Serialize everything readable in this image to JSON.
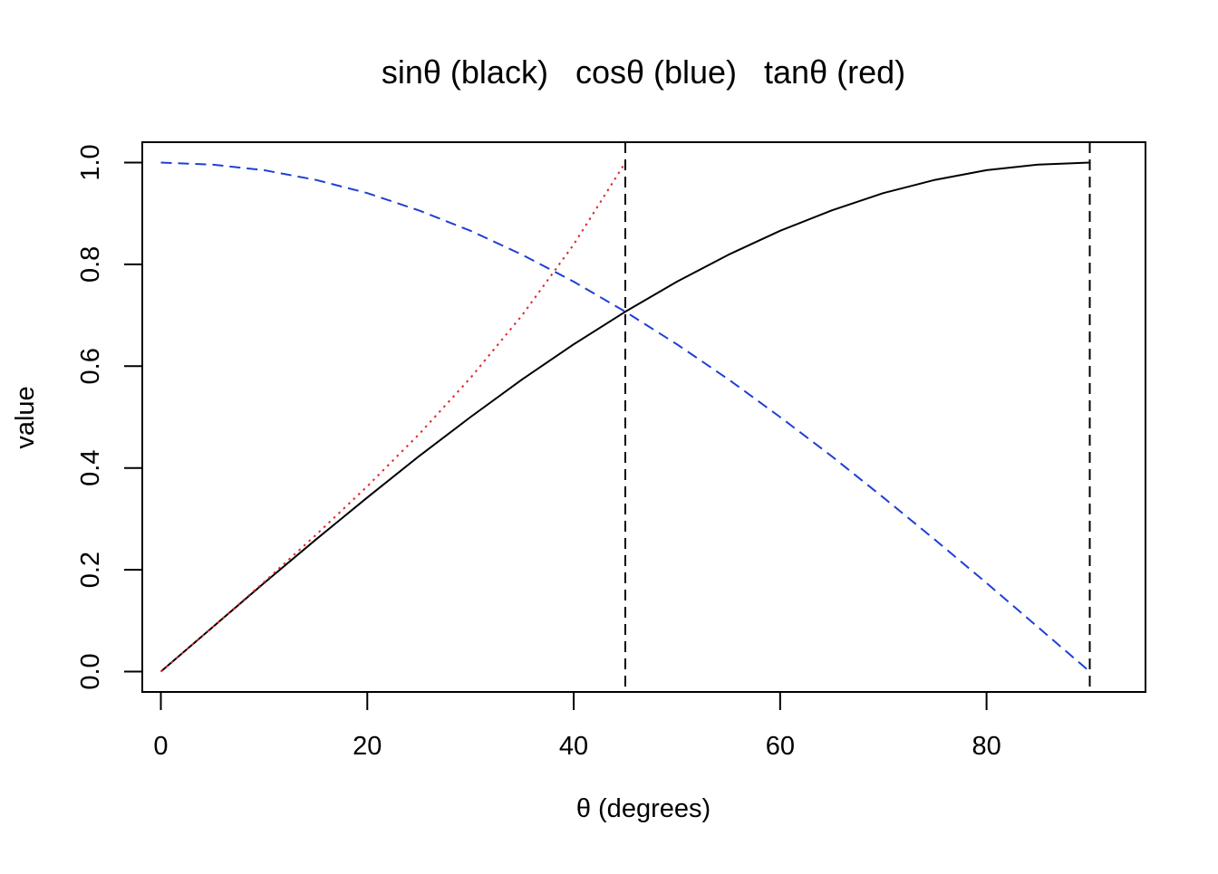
{
  "chart_data": {
    "type": "line",
    "title": "sinθ (black)   cosθ (blue)   tanθ (red)",
    "xlabel": "θ (degrees)",
    "ylabel": "value",
    "xlim": [
      -1.8,
      95.4
    ],
    "ylim": [
      -0.04,
      1.04
    ],
    "x_ticks": [
      0,
      20,
      40,
      60,
      80
    ],
    "y_ticks": [
      0.0,
      0.2,
      0.4,
      0.6,
      0.8,
      1.0
    ],
    "x_tick_labels": [
      "0",
      "20",
      "40",
      "60",
      "80"
    ],
    "y_tick_labels": [
      "0.0",
      "0.2",
      "0.4",
      "0.6",
      "0.8",
      "1.0"
    ],
    "grid": false,
    "legend": "none",
    "vlines": [
      {
        "x": 45,
        "color": "#000000",
        "style": "dashed"
      },
      {
        "x": 90,
        "color": "#000000",
        "style": "dashed"
      }
    ],
    "series": [
      {
        "color": "#000000",
        "style": "solid",
        "x": [
          0,
          5,
          10,
          15,
          20,
          25,
          30,
          35,
          40,
          45,
          50,
          55,
          60,
          65,
          70,
          75,
          80,
          85,
          90
        ],
        "values": [
          0.0,
          0.087,
          0.174,
          0.259,
          0.342,
          0.423,
          0.5,
          0.574,
          0.643,
          0.707,
          0.766,
          0.819,
          0.866,
          0.906,
          0.94,
          0.966,
          0.985,
          0.996,
          1.0
        ]
      },
      {
        "color": "#1f3fd4",
        "style": "dashed",
        "x": [
          0,
          5,
          10,
          15,
          20,
          25,
          30,
          35,
          40,
          45,
          50,
          55,
          60,
          65,
          70,
          75,
          80,
          85,
          90
        ],
        "values": [
          1.0,
          0.996,
          0.985,
          0.966,
          0.94,
          0.906,
          0.866,
          0.819,
          0.766,
          0.707,
          0.643,
          0.574,
          0.5,
          0.423,
          0.342,
          0.259,
          0.174,
          0.087,
          0.0
        ]
      },
      {
        "color": "#e0242a",
        "style": "dotted",
        "x": [
          0,
          5,
          10,
          15,
          20,
          25,
          30,
          35,
          40,
          45
        ],
        "values": [
          0.0,
          0.087,
          0.176,
          0.268,
          0.364,
          0.466,
          0.577,
          0.7,
          0.839,
          1.0
        ]
      }
    ]
  }
}
